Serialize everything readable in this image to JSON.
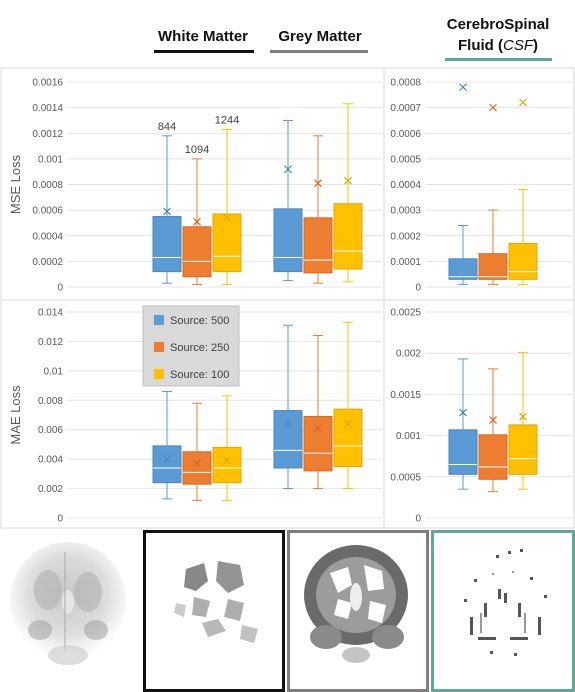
{
  "headers": {
    "white_matter": "White Matter",
    "grey_matter": "Grey Matter",
    "csf_line1": "CerebroSpinal",
    "csf_line2": "Fluid",
    "csf_abbr": "CSF",
    "colors": {
      "white_matter": "#111111",
      "grey_matter": "#7f7f7f",
      "csf": "#5fa898"
    }
  },
  "legend": {
    "entries": [
      {
        "label": "Source: 500",
        "color": "#5b9bd5"
      },
      {
        "label": "Source: 250",
        "color": "#ed7d31"
      },
      {
        "label": "Source: 100",
        "color": "#ffc000"
      }
    ]
  },
  "thumbnails": {
    "items": [
      {
        "name": "original-brain-slice",
        "border": ""
      },
      {
        "name": "white-matter-mask",
        "border": "#111111"
      },
      {
        "name": "grey-matter-mask",
        "border": "#7f7f7f"
      },
      {
        "name": "csf-mask",
        "border": "#5fa898"
      }
    ]
  },
  "chart_data": [
    {
      "id": "mse_wm_gm",
      "type": "box",
      "ylabel": "MSE Loss",
      "ylim": [
        0,
        0.0016
      ],
      "yticks": [
        "0",
        "0.0002",
        "0.0004",
        "0.0006",
        "0.0008",
        "0.001",
        "0.0012",
        "0.0014",
        "0.0016"
      ],
      "groups": [
        "White Matter",
        "Grey Matter"
      ],
      "series": [
        "Source: 500",
        "Source: 250",
        "Source: 100"
      ],
      "boxes": [
        [
          {
            "min": 3e-05,
            "q1": 0.00012,
            "median": 0.00023,
            "q3": 0.00055,
            "max": 0.00118,
            "mean": 0.00059,
            "outlier_label": "844"
          },
          {
            "min": 2e-05,
            "q1": 8e-05,
            "median": 0.0002,
            "q3": 0.00047,
            "max": 0.001,
            "mean": 0.00051,
            "outlier_label": "1094"
          },
          {
            "min": 2e-05,
            "q1": 0.00012,
            "median": 0.00024,
            "q3": 0.00057,
            "max": 0.00123,
            "mean": 0.00054,
            "outlier_label": "1244"
          }
        ],
        [
          {
            "min": 5e-05,
            "q1": 0.00012,
            "median": 0.00023,
            "q3": 0.00061,
            "max": 0.0013,
            "mean": 0.00092
          },
          {
            "min": 3e-05,
            "q1": 0.00011,
            "median": 0.00021,
            "q3": 0.00054,
            "max": 0.00118,
            "mean": 0.00081
          },
          {
            "min": 4e-05,
            "q1": 0.00014,
            "median": 0.00028,
            "q3": 0.00065,
            "max": 0.00143,
            "mean": 0.00083
          }
        ]
      ]
    },
    {
      "id": "mse_csf",
      "type": "box",
      "ylabel": "",
      "ylim": [
        0,
        0.0008
      ],
      "yticks": [
        "0",
        "0.0001",
        "0.0002",
        "0.0003",
        "0.0004",
        "0.0005",
        "0.0006",
        "0.0007",
        "0.0008"
      ],
      "groups": [
        "CerebroSpinal Fluid (CSF)"
      ],
      "series": [
        "Source: 500",
        "Source: 250",
        "Source: 100"
      ],
      "boxes": [
        [
          {
            "min": 1e-05,
            "q1": 3e-05,
            "median": 4e-05,
            "q3": 0.00011,
            "max": 0.00024,
            "mean": 0.00078
          },
          {
            "min": 1e-05,
            "q1": 3e-05,
            "median": 4e-05,
            "q3": 0.00013,
            "max": 0.0003,
            "mean": 0.0007
          },
          {
            "min": 1e-05,
            "q1": 3e-05,
            "median": 6e-05,
            "q3": 0.00017,
            "max": 0.00038,
            "mean": 0.00072
          }
        ]
      ]
    },
    {
      "id": "mae_wm_gm",
      "type": "box",
      "ylabel": "MAE Loss",
      "ylim": [
        0,
        0.014
      ],
      "yticks": [
        "0",
        "0.002",
        "0.004",
        "0.006",
        "0.008",
        "0.01",
        "0.012",
        "0.014"
      ],
      "groups": [
        "White Matter",
        "Grey Matter"
      ],
      "series": [
        "Source: 500",
        "Source: 250",
        "Source: 100"
      ],
      "boxes": [
        [
          {
            "min": 0.0013,
            "q1": 0.0024,
            "median": 0.0034,
            "q3": 0.0049,
            "max": 0.0086,
            "mean": 0.004
          },
          {
            "min": 0.0012,
            "q1": 0.0023,
            "median": 0.0031,
            "q3": 0.0045,
            "max": 0.0078,
            "mean": 0.0037
          },
          {
            "min": 0.0012,
            "q1": 0.0024,
            "median": 0.0034,
            "q3": 0.0048,
            "max": 0.0083,
            "mean": 0.0039
          }
        ],
        [
          {
            "min": 0.002,
            "q1": 0.0034,
            "median": 0.0046,
            "q3": 0.0073,
            "max": 0.0131,
            "mean": 0.0064
          },
          {
            "min": 0.002,
            "q1": 0.0032,
            "median": 0.0044,
            "q3": 0.0069,
            "max": 0.0124,
            "mean": 0.0061
          },
          {
            "min": 0.002,
            "q1": 0.0035,
            "median": 0.0049,
            "q3": 0.0074,
            "max": 0.0133,
            "mean": 0.0064
          }
        ]
      ]
    },
    {
      "id": "mae_csf",
      "type": "box",
      "ylabel": "",
      "ylim": [
        0,
        0.0025
      ],
      "yticks": [
        "0",
        "0.0005",
        "0.001",
        "0.0015",
        "0.002",
        "0.0025"
      ],
      "groups": [
        "CerebroSpinal Fluid (CSF)"
      ],
      "series": [
        "Source: 500",
        "Source: 250",
        "Source: 100"
      ],
      "boxes": [
        [
          {
            "min": 0.00035,
            "q1": 0.00053,
            "median": 0.00065,
            "q3": 0.00107,
            "max": 0.00193,
            "mean": 0.00128
          },
          {
            "min": 0.00032,
            "q1": 0.00047,
            "median": 0.00062,
            "q3": 0.00101,
            "max": 0.00181,
            "mean": 0.00119
          },
          {
            "min": 0.00035,
            "q1": 0.00053,
            "median": 0.00072,
            "q3": 0.00113,
            "max": 0.00201,
            "mean": 0.00123
          }
        ]
      ]
    }
  ]
}
